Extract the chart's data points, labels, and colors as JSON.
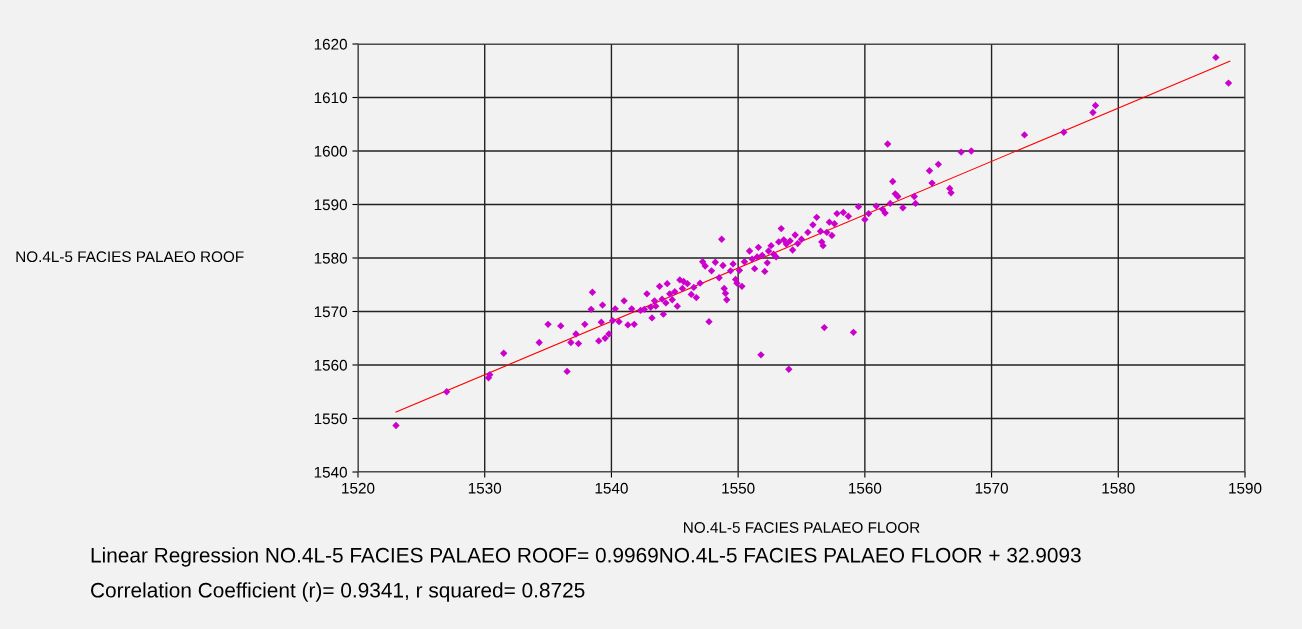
{
  "chart_data": {
    "type": "scatter",
    "xlabel": "NO.4L-5 FACIES PALAEO FLOOR",
    "ylabel": "NO.4L-5 FACIES PALAEO ROOF",
    "xlim": [
      1520,
      1590
    ],
    "xticks": [
      1520,
      1530,
      1540,
      1550,
      1560,
      1570,
      1580,
      1590
    ],
    "ylim": [
      1540,
      1620
    ],
    "yticks": [
      1540,
      1550,
      1560,
      1570,
      1580,
      1590,
      1600,
      1610,
      1620
    ],
    "grid": true,
    "annotations": [
      "Linear Regression NO.4L-5 FACIES PALAEO ROOF= 0.9969NO.4L-5 FACIES PALAEO FLOOR + 32.9093",
      "Correlation Coefficient (r)= 0.9341, r squared= 0.8725"
    ],
    "series": [
      {
        "color": "#cc00cc",
        "marker": "diamond",
        "x": [
          1523,
          1527,
          1530.3,
          1530.4,
          1531.5,
          1534.3,
          1535,
          1536,
          1536.5,
          1536.8,
          1537.2,
          1537.4,
          1537.9,
          1538.4,
          1538.5,
          1539,
          1539.2,
          1539.3,
          1539.5,
          1539.8,
          1540.1,
          1540.3,
          1540.6,
          1541,
          1541.3,
          1541.6,
          1541.8,
          1542.3,
          1542.6,
          1542.8,
          1543.1,
          1543.2,
          1543.4,
          1543.5,
          1543.8,
          1544,
          1544.1,
          1544.3,
          1544.4,
          1544.6,
          1544.8,
          1545,
          1545.2,
          1545.4,
          1545.6,
          1545.7,
          1546,
          1546.3,
          1546.5,
          1546.7,
          1547,
          1547.2,
          1547.4,
          1547.7,
          1547.9,
          1548.2,
          1548.5,
          1548.7,
          1548.8,
          1548.9,
          1549,
          1549.1,
          1549.4,
          1549.6,
          1549.8,
          1549.9,
          1550.1,
          1550.3,
          1550.5,
          1550.9,
          1551.1,
          1551.3,
          1551.5,
          1551.6,
          1551.8,
          1551.9,
          1552.1,
          1552.3,
          1552.4,
          1552.6,
          1552.8,
          1553,
          1553.2,
          1553.4,
          1553.6,
          1553.8,
          1554,
          1554.1,
          1554.3,
          1554.5,
          1554.7,
          1555,
          1555.5,
          1555.9,
          1556.2,
          1556.5,
          1556.6,
          1556.7,
          1556.8,
          1557,
          1557.2,
          1557.4,
          1557.6,
          1557.8,
          1558.3,
          1558.7,
          1559.1,
          1559.5,
          1560,
          1560.3,
          1560.9,
          1561.4,
          1561.6,
          1561.8,
          1562,
          1562.2,
          1562.4,
          1562.6,
          1563,
          1563.9,
          1564,
          1565.1,
          1565.3,
          1565.8,
          1566.7,
          1566.8,
          1567.6,
          1568.4,
          1572.6,
          1575.7,
          1578,
          1578.2,
          1587.7,
          1588.7
        ],
        "values": [
          1548.7,
          1555,
          1557.6,
          1558.2,
          1562.2,
          1564.2,
          1567.6,
          1567.3,
          1558.8,
          1564.2,
          1565.8,
          1564,
          1567.6,
          1570.4,
          1573.6,
          1564.5,
          1568,
          1571.2,
          1565,
          1565.8,
          1568.3,
          1570.5,
          1568.1,
          1572,
          1567.5,
          1570.5,
          1567.6,
          1570.2,
          1570.4,
          1573.3,
          1570.8,
          1568.8,
          1572,
          1571,
          1574.7,
          1572.3,
          1569.5,
          1571.6,
          1575.2,
          1573.3,
          1572.2,
          1573.7,
          1571,
          1575.9,
          1574.3,
          1575.6,
          1575.2,
          1573.2,
          1574.5,
          1572.6,
          1575.3,
          1579.3,
          1578.5,
          1568.1,
          1577.6,
          1579.2,
          1576.3,
          1583.5,
          1578.6,
          1574.3,
          1573.4,
          1572.2,
          1577.6,
          1578.9,
          1576,
          1575.3,
          1577.7,
          1574.7,
          1579.3,
          1581.3,
          1579.8,
          1578,
          1580.2,
          1582,
          1561.9,
          1580.5,
          1577.5,
          1579.1,
          1581.3,
          1582.3,
          1580.7,
          1580.2,
          1583,
          1585.5,
          1583.4,
          1582.6,
          1559.2,
          1583.2,
          1581.5,
          1584.3,
          1582.7,
          1583.5,
          1584.8,
          1586.2,
          1587.6,
          1585,
          1583,
          1582.3,
          1567,
          1584.8,
          1586.7,
          1584.2,
          1586.4,
          1588.3,
          1588.5,
          1587.8,
          1566.1,
          1589.6,
          1587.2,
          1588.3,
          1589.7,
          1589.1,
          1588.4,
          1601.3,
          1590.2,
          1594.3,
          1592,
          1591.5,
          1589.4,
          1591.5,
          1590.2,
          1596.3,
          1594,
          1597.5,
          1593,
          1592.2,
          1599.8,
          1600,
          1603,
          1603.5,
          1607.2,
          1608.5,
          1617.5,
          1612.7
        ]
      },
      {
        "type": "line",
        "color": "#ff0000",
        "x": [
          1523,
          1588.8
        ],
        "values": [
          1551.2,
          1616.8
        ]
      }
    ]
  }
}
